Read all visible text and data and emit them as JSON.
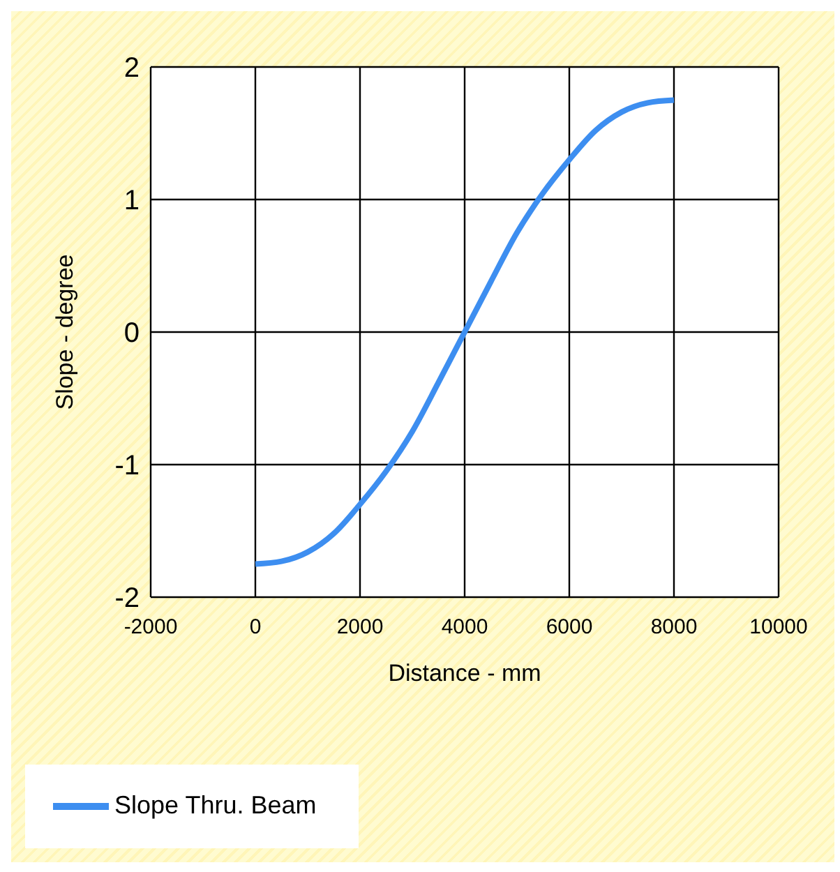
{
  "chart_data": {
    "type": "line",
    "xlabel": "Distance - mm",
    "ylabel": "Slope - degree",
    "series": [
      {
        "name": "Slope Thru. Beam",
        "color": "#3d8ef0",
        "x": [
          0,
          500,
          1000,
          1500,
          2000,
          2500,
          3000,
          3500,
          4000,
          4500,
          5000,
          5500,
          6000,
          6500,
          7000,
          7500,
          8000
        ],
        "values": [
          -1.75,
          -1.73,
          -1.66,
          -1.52,
          -1.3,
          -1.05,
          -0.75,
          -0.38,
          0,
          0.38,
          0.75,
          1.05,
          1.3,
          1.52,
          1.66,
          1.73,
          1.75
        ]
      }
    ],
    "xlim": [
      -2000,
      10000
    ],
    "xticks": [
      -2000,
      0,
      2000,
      4000,
      6000,
      8000,
      10000
    ],
    "ylim": [
      -2,
      2
    ],
    "yticks": [
      -2,
      -1,
      0,
      1,
      2
    ],
    "grid": true,
    "legend": "bottom left",
    "marker": "none",
    "line_style": "solid"
  }
}
